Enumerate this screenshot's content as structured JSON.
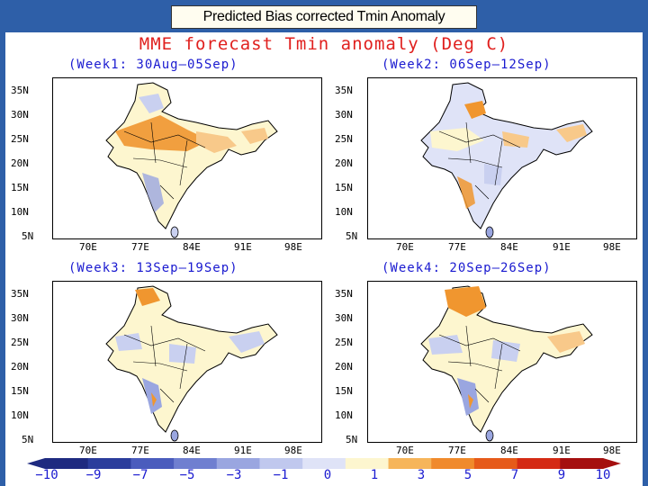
{
  "header": {
    "title": "Predicted Bias corrected  Tmin Anomaly"
  },
  "figure": {
    "title": "MME forecast Tmin anomaly (Deg C)"
  },
  "panels": [
    {
      "label": "(Week1: 30Aug—05Sep)",
      "lat_ticks": [
        "35N",
        "30N",
        "25N",
        "20N",
        "15N",
        "10N",
        "5N"
      ],
      "lon_ticks": [
        "70E",
        "77E",
        "84E",
        "91E",
        "98E"
      ]
    },
    {
      "label": "(Week2: 06Sep—12Sep)",
      "lat_ticks": [
        "35N",
        "30N",
        "25N",
        "20N",
        "15N",
        "10N",
        "5N"
      ],
      "lon_ticks": [
        "70E",
        "77E",
        "84E",
        "91E",
        "98E"
      ]
    },
    {
      "label": "(Week3: 13Sep—19Sep)",
      "lat_ticks": [
        "35N",
        "30N",
        "25N",
        "20N",
        "15N",
        "10N",
        "5N"
      ],
      "lon_ticks": [
        "70E",
        "77E",
        "84E",
        "91E",
        "98E"
      ]
    },
    {
      "label": "(Week4: 20Sep—26Sep)",
      "lat_ticks": [
        "35N",
        "30N",
        "25N",
        "20N",
        "15N",
        "10N",
        "5N"
      ],
      "lon_ticks": [
        "70E",
        "77E",
        "84E",
        "91E",
        "98E"
      ]
    }
  ],
  "colorbar": {
    "labels": [
      "−10",
      "−9",
      "−7",
      "−5",
      "−3",
      "−1",
      "0",
      "1",
      "3",
      "5",
      "7",
      "9",
      "10"
    ],
    "colors": [
      "#1e2a80",
      "#2b3d9c",
      "#4a5cbd",
      "#6f7fd0",
      "#9aa6e0",
      "#c0c8ee",
      "#dfe3f7",
      "#fdf6cf",
      "#f6b55a",
      "#f08a2c",
      "#e65a1a",
      "#d42a14",
      "#a50f0f"
    ]
  },
  "map_colors": {
    "ocean": "#ffffff",
    "land_neutral": "#fdf6cf",
    "cool_light": "#c9d0f0",
    "cool": "#9aa6e0",
    "warm_light": "#f8c98a",
    "warm": "#f0962f",
    "warm_dark": "#e36d1c"
  }
}
